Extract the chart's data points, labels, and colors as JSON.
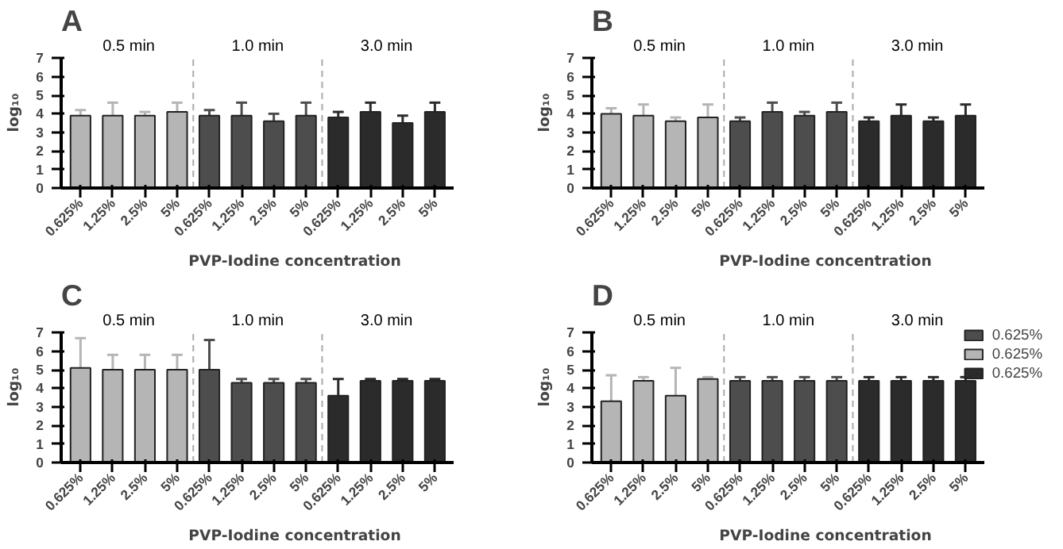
{
  "chart_data": [
    {
      "type": "bar",
      "title": "A",
      "xlabel": "PVP-Iodine concentration",
      "ylabel": "log₁₀",
      "annotations": [
        "0.5 min",
        "1.0 min",
        "3.0 min"
      ],
      "categories": [
        "0.625%",
        "1.25%",
        "2.5%",
        "5%",
        "0.625%",
        "1.25%",
        "2.5%",
        "5%",
        "0.625%",
        "1.25%",
        "2.5%",
        "5%"
      ],
      "ylim": [
        0,
        7
      ],
      "yticks": [
        0,
        1,
        2,
        3,
        4,
        5,
        6,
        7
      ],
      "series": [
        {
          "color": "#4d4d4d",
          "values": [
            null,
            null,
            null,
            null,
            3.9,
            3.9,
            3.6,
            3.9,
            null,
            null,
            null,
            null
          ],
          "errors": [
            null,
            null,
            null,
            null,
            [
              3.9,
              4.2
            ],
            [
              3.9,
              4.6
            ],
            [
              3.6,
              4.0
            ],
            [
              3.9,
              4.6
            ],
            null,
            null,
            null,
            null
          ]
        },
        {
          "color": "#b5b5b5",
          "values": [
            3.9,
            3.9,
            3.9,
            4.1,
            null,
            null,
            null,
            null,
            null,
            null,
            null,
            null
          ],
          "errors": [
            [
              3.9,
              4.2
            ],
            [
              3.9,
              4.6
            ],
            [
              3.9,
              4.1
            ],
            [
              4.1,
              4.6
            ],
            null,
            null,
            null,
            null,
            null,
            null,
            null,
            null
          ]
        },
        {
          "color": "#2b2b2b",
          "values": [
            null,
            null,
            null,
            null,
            null,
            null,
            null,
            null,
            3.8,
            4.1,
            3.5,
            4.1
          ],
          "errors": [
            null,
            null,
            null,
            null,
            null,
            null,
            null,
            null,
            [
              3.8,
              4.1
            ],
            [
              4.1,
              4.6
            ],
            [
              3.5,
              3.9
            ],
            [
              4.1,
              4.6
            ]
          ]
        }
      ]
    },
    {
      "type": "bar",
      "title": "B",
      "xlabel": "PVP-Iodine concentration",
      "ylabel": "log₁₀",
      "annotations": [
        "0.5 min",
        "1.0 min",
        "3.0 min"
      ],
      "categories": [
        "0.625%",
        "1.25%",
        "2.5%",
        "5%",
        "0.625%",
        "1.25%",
        "2.5%",
        "5%",
        "0.625%",
        "1.25%",
        "2.5%",
        "5%"
      ],
      "ylim": [
        0,
        7
      ],
      "yticks": [
        0,
        1,
        2,
        3,
        4,
        5,
        6,
        7
      ],
      "series": [
        {
          "color": "#4d4d4d",
          "values": [
            null,
            null,
            null,
            null,
            3.6,
            4.1,
            3.9,
            4.1,
            null,
            null,
            null,
            null
          ],
          "errors": [
            null,
            null,
            null,
            null,
            [
              3.6,
              3.8
            ],
            [
              4.1,
              4.6
            ],
            [
              3.9,
              4.1
            ],
            [
              4.1,
              4.6
            ],
            null,
            null,
            null,
            null
          ]
        },
        {
          "color": "#b5b5b5",
          "values": [
            4.0,
            3.9,
            3.6,
            3.8,
            null,
            null,
            null,
            null,
            null,
            null,
            null,
            null
          ],
          "errors": [
            [
              4.0,
              4.3
            ],
            [
              3.9,
              4.5
            ],
            [
              3.6,
              3.8
            ],
            [
              3.8,
              4.5
            ],
            null,
            null,
            null,
            null,
            null,
            null,
            null,
            null
          ]
        },
        {
          "color": "#2b2b2b",
          "values": [
            null,
            null,
            null,
            null,
            null,
            null,
            null,
            null,
            3.6,
            3.9,
            3.6,
            3.9
          ],
          "errors": [
            null,
            null,
            null,
            null,
            null,
            null,
            null,
            null,
            [
              3.6,
              3.8
            ],
            [
              3.9,
              4.5
            ],
            [
              3.6,
              3.8
            ],
            [
              3.9,
              4.5
            ]
          ]
        }
      ]
    },
    {
      "type": "bar",
      "title": "C",
      "xlabel": "PVP-Iodine concentration",
      "ylabel": "log₁₀",
      "annotations": [
        "0.5 min",
        "1.0 min",
        "3.0 min"
      ],
      "categories": [
        "0.625%",
        "1.25%",
        "2.5%",
        "5%",
        "0.625%",
        "1.25%",
        "2.5%",
        "5%",
        "0.625%",
        "1.25%",
        "2.5%",
        "5%"
      ],
      "ylim": [
        0,
        7
      ],
      "yticks": [
        0,
        1,
        2,
        3,
        4,
        5,
        6,
        7
      ],
      "series": [
        {
          "color": "#4d4d4d",
          "values": [
            null,
            null,
            null,
            null,
            5.0,
            4.3,
            4.3,
            4.3,
            null,
            null,
            null,
            null
          ],
          "errors": [
            null,
            null,
            null,
            null,
            [
              5.0,
              6.6
            ],
            [
              4.3,
              4.5
            ],
            [
              4.3,
              4.5
            ],
            [
              4.3,
              4.5
            ],
            null,
            null,
            null,
            null
          ]
        },
        {
          "color": "#b5b5b5",
          "values": [
            5.1,
            5.0,
            5.0,
            5.0,
            null,
            null,
            null,
            null,
            null,
            null,
            null,
            null
          ],
          "errors": [
            [
              5.1,
              6.7
            ],
            [
              5.0,
              5.8
            ],
            [
              5.0,
              5.8
            ],
            [
              5.0,
              5.8
            ],
            null,
            null,
            null,
            null,
            null,
            null,
            null,
            null
          ]
        },
        {
          "color": "#2b2b2b",
          "values": [
            null,
            null,
            null,
            null,
            null,
            null,
            null,
            null,
            3.6,
            4.4,
            4.4,
            4.4
          ],
          "errors": [
            null,
            null,
            null,
            null,
            null,
            null,
            null,
            null,
            [
              3.6,
              4.5
            ],
            [
              4.4,
              4.5
            ],
            [
              4.4,
              4.5
            ],
            [
              4.4,
              4.5
            ]
          ]
        }
      ]
    },
    {
      "type": "bar",
      "title": "D",
      "xlabel": "PVP-Iodine concentration",
      "ylabel": "log₁₀",
      "annotations": [
        "0.5 min",
        "1.0 min",
        "3.0 min"
      ],
      "legend": "right",
      "categories": [
        "0.625%",
        "1.25%",
        "2.5%",
        "5%",
        "0.625%",
        "1.25%",
        "2.5%",
        "5%",
        "0.625%",
        "1.25%",
        "2.5%",
        "5%"
      ],
      "ylim": [
        0,
        7
      ],
      "yticks": [
        0,
        1,
        2,
        3,
        4,
        5,
        6,
        7
      ],
      "series": [
        {
          "name": "0.625%",
          "color": "#4d4d4d",
          "values": [
            null,
            null,
            null,
            null,
            4.4,
            4.4,
            4.4,
            4.4,
            null,
            null,
            null,
            null
          ],
          "errors": [
            null,
            null,
            null,
            null,
            [
              4.4,
              4.6
            ],
            [
              4.4,
              4.6
            ],
            [
              4.4,
              4.6
            ],
            [
              4.4,
              4.6
            ],
            null,
            null,
            null,
            null
          ]
        },
        {
          "name": "0.625%",
          "color": "#b5b5b5",
          "values": [
            3.3,
            4.4,
            3.6,
            4.5,
            null,
            null,
            null,
            null,
            null,
            null,
            null,
            null
          ],
          "errors": [
            [
              3.3,
              4.7
            ],
            [
              4.4,
              4.6
            ],
            [
              3.6,
              5.1
            ],
            [
              4.5,
              4.6
            ],
            null,
            null,
            null,
            null,
            null,
            null,
            null,
            null
          ]
        },
        {
          "name": "0.625%",
          "color": "#2b2b2b",
          "values": [
            null,
            null,
            null,
            null,
            null,
            null,
            null,
            null,
            4.4,
            4.4,
            4.4,
            4.4
          ],
          "errors": [
            null,
            null,
            null,
            null,
            null,
            null,
            null,
            null,
            [
              4.4,
              4.6
            ],
            [
              4.4,
              4.6
            ],
            [
              4.4,
              4.6
            ],
            [
              4.4,
              4.6
            ]
          ]
        }
      ]
    }
  ]
}
